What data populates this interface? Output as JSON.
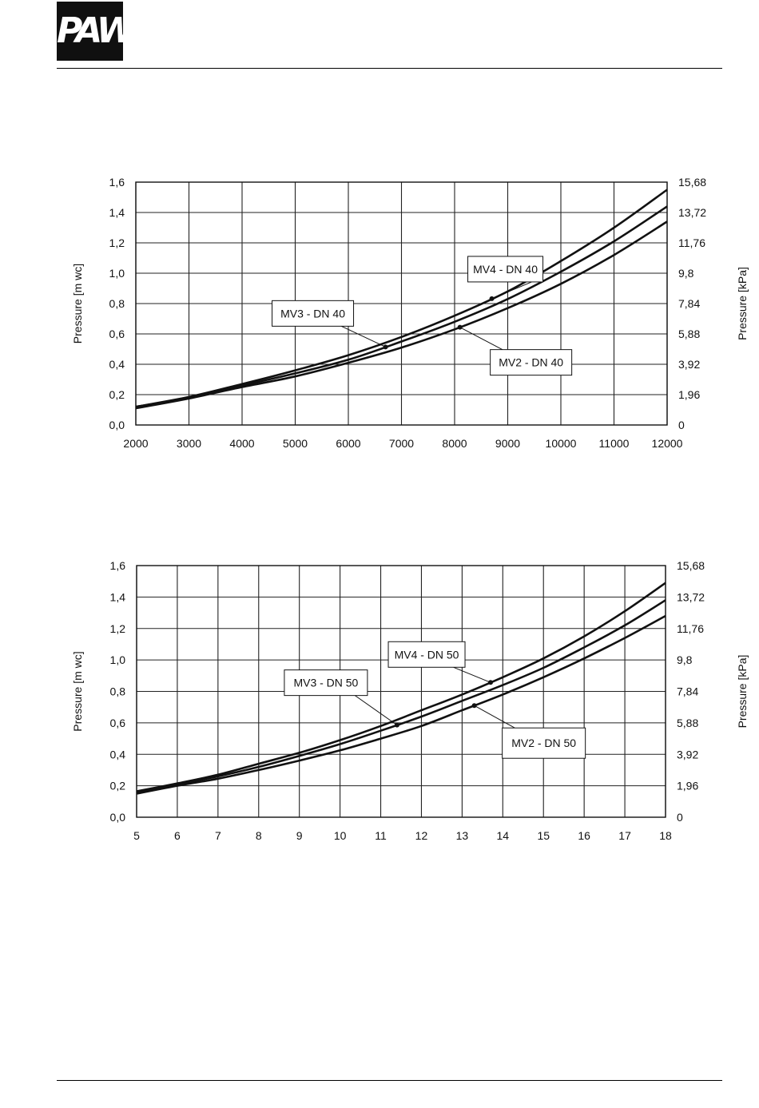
{
  "header": {
    "logo_text": "PAW"
  },
  "chart_data": [
    {
      "type": "line",
      "title": "",
      "xlabel": "",
      "ylabel": "Pressure [m wc]",
      "ylabel_right": "Pressure [kPa]",
      "xlim": [
        2000,
        12000
      ],
      "ylim": [
        0,
        1.6
      ],
      "x_ticks": [
        2000,
        3000,
        4000,
        5000,
        6000,
        7000,
        8000,
        9000,
        10000,
        11000,
        12000
      ],
      "x_tick_labels": [
        "2000",
        "3000",
        "4000",
        "5000",
        "6000",
        "7000",
        "8000",
        "9000",
        "10000",
        "11000",
        "12000"
      ],
      "y_ticks": [
        0,
        0.2,
        0.4,
        0.6,
        0.8,
        1.0,
        1.2,
        1.4,
        1.6
      ],
      "y_tick_labels": [
        "0,0",
        "0,2",
        "0,4",
        "0,6",
        "0,8",
        "1,0",
        "1,2",
        "1,4",
        "1,6"
      ],
      "y2_tick_labels": [
        "0",
        "1,96",
        "3,92",
        "5,88",
        "7,84",
        "9,8",
        "11,76",
        "13,72",
        "15,68"
      ],
      "grid": true,
      "series": [
        {
          "name": "MV4 - DN 40",
          "x": [
            2000,
            3000,
            4000,
            5000,
            6000,
            7000,
            8000,
            9000,
            10000,
            11000,
            12000
          ],
          "values": [
            0.12,
            0.185,
            0.27,
            0.36,
            0.46,
            0.58,
            0.72,
            0.88,
            1.08,
            1.3,
            1.55
          ]
        },
        {
          "name": "MV3 - DN 40",
          "x": [
            2000,
            3000,
            4000,
            5000,
            6000,
            7000,
            8000,
            9000,
            10000,
            11000,
            12000
          ],
          "values": [
            0.12,
            0.18,
            0.26,
            0.34,
            0.43,
            0.55,
            0.68,
            0.83,
            1.01,
            1.21,
            1.44
          ]
        },
        {
          "name": "MV2 - DN 40",
          "x": [
            2000,
            3000,
            4000,
            5000,
            6000,
            7000,
            8000,
            9000,
            10000,
            11000,
            12000
          ],
          "values": [
            0.11,
            0.175,
            0.25,
            0.32,
            0.41,
            0.51,
            0.63,
            0.77,
            0.93,
            1.12,
            1.34
          ]
        }
      ],
      "annotations": [
        {
          "text": "MV4 - DN 40",
          "series": 0,
          "at_x": 8700
        },
        {
          "text": "MV3 - DN 40",
          "series": 1,
          "at_x": 6700
        },
        {
          "text": "MV2 - DN 40",
          "series": 2,
          "at_x": 8100
        }
      ]
    },
    {
      "type": "line",
      "title": "",
      "xlabel": "",
      "ylabel": "Pressure [m wc]",
      "ylabel_right": "Pressure [kPa]",
      "xlim": [
        5,
        18
      ],
      "ylim": [
        0,
        1.6
      ],
      "x_ticks": [
        5,
        6,
        7,
        8,
        9,
        10,
        11,
        12,
        13,
        14,
        15,
        16,
        17,
        18
      ],
      "x_tick_labels": [
        "5",
        "6",
        "7",
        "8",
        "9",
        "10",
        "11",
        "12",
        "13",
        "14",
        "15",
        "16",
        "17",
        "18"
      ],
      "y_ticks": [
        0,
        0.2,
        0.4,
        0.6,
        0.8,
        1.0,
        1.2,
        1.4,
        1.6
      ],
      "y_tick_labels": [
        "0,0",
        "0,2",
        "0,4",
        "0,6",
        "0,8",
        "1,0",
        "1,2",
        "1,4",
        "1,6"
      ],
      "y2_tick_labels": [
        "0",
        "1,96",
        "3,92",
        "5,88",
        "7,84",
        "9,8",
        "11,76",
        "13,72",
        "15,68"
      ],
      "grid": true,
      "series": [
        {
          "name": "MV4 - DN 50",
          "x": [
            5,
            6,
            7,
            8,
            9,
            10,
            11,
            12,
            13,
            14,
            15,
            16,
            17,
            18
          ],
          "values": [
            0.165,
            0.215,
            0.27,
            0.34,
            0.41,
            0.49,
            0.58,
            0.68,
            0.78,
            0.89,
            1.01,
            1.15,
            1.31,
            1.49
          ]
        },
        {
          "name": "MV3 - DN 50",
          "x": [
            5,
            6,
            7,
            8,
            9,
            10,
            11,
            12,
            13,
            14,
            15,
            16,
            17,
            18
          ],
          "values": [
            0.16,
            0.21,
            0.26,
            0.32,
            0.39,
            0.465,
            0.55,
            0.64,
            0.74,
            0.84,
            0.95,
            1.08,
            1.22,
            1.38
          ]
        },
        {
          "name": "MV2 - DN 50",
          "x": [
            5,
            6,
            7,
            8,
            9,
            10,
            11,
            12,
            13,
            14,
            15,
            16,
            17,
            18
          ],
          "values": [
            0.15,
            0.2,
            0.245,
            0.3,
            0.36,
            0.425,
            0.5,
            0.58,
            0.68,
            0.78,
            0.89,
            1.01,
            1.14,
            1.28
          ]
        }
      ],
      "annotations": [
        {
          "text": "MV4 - DN 50",
          "series": 0,
          "at_x": 13.7
        },
        {
          "text": "MV3 - DN 50",
          "series": 1,
          "at_x": 11.4
        },
        {
          "text": "MV2 - DN 50",
          "series": 2,
          "at_x": 13.3
        }
      ]
    }
  ]
}
